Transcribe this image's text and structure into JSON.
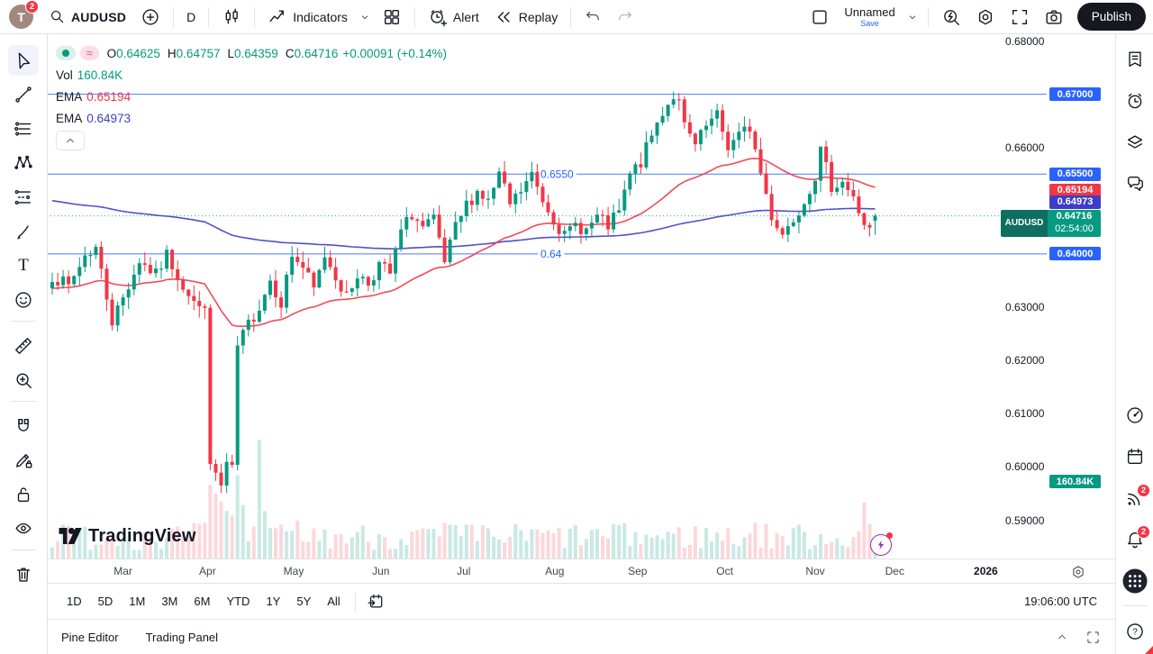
{
  "topbar": {
    "avatar_letter": "T",
    "avatar_badge": "2",
    "symbol": "AUDUSD",
    "interval": "D",
    "indicators_label": "Indicators",
    "alert_label": "Alert",
    "replay_label": "Replay",
    "layout_name": "Unnamed",
    "save_label": "Save",
    "publish_label": "Publish"
  },
  "left_toolbar": {
    "active": "cursor",
    "groups": [
      [
        "cursor",
        "trend-line",
        "horizontal-lines",
        "xabcd-pattern",
        "fib-retracement",
        "brush",
        "text",
        "emoji"
      ],
      [
        "ruler",
        "zoom-in"
      ],
      [
        "magnet",
        "drawing-edit",
        "lock-all",
        "hide-all"
      ],
      [
        "remove-all"
      ]
    ]
  },
  "right_sidebar": {
    "top": [
      {
        "name": "watchlist"
      },
      {
        "name": "alerts-clock"
      },
      {
        "name": "object-tree"
      },
      {
        "name": "chat"
      }
    ],
    "bottom": [
      {
        "name": "ideas-stream"
      },
      {
        "name": "calendar"
      },
      {
        "name": "streams",
        "badge": "2"
      },
      {
        "name": "notifications",
        "badge": "2"
      },
      {
        "name": "apps-grid"
      }
    ],
    "help_label": "?"
  },
  "legend": {
    "ohlc": [
      [
        "O",
        "0.64625"
      ],
      [
        "H",
        "0.64757"
      ],
      [
        "L",
        "0.64359"
      ],
      [
        "C",
        "0.64716"
      ]
    ],
    "change": "+0.00091 (+0.14%)",
    "vol_label": "Vol",
    "vol_value": "160.84K",
    "ema1_label": "EMA",
    "ema1_value": "0.65194",
    "ema2_label": "EMA",
    "ema2_value": "0.64973"
  },
  "price_scale": {
    "ticks": [
      {
        "label": "0.68000",
        "price": 0.68,
        "type": "plain"
      },
      {
        "label": "0.67000",
        "price": 0.67,
        "type": "level"
      },
      {
        "label": "0.66000",
        "price": 0.66,
        "type": "plain"
      },
      {
        "label": "0.65500",
        "price": 0.655,
        "type": "level"
      },
      {
        "label": "0.65194",
        "price": 0.65194,
        "type": "ema1"
      },
      {
        "label": "0.64973",
        "price": 0.64973,
        "type": "ema2"
      },
      {
        "label": "0.64000",
        "price": 0.64,
        "type": "level"
      },
      {
        "label": "0.63000",
        "price": 0.63,
        "type": "plain"
      },
      {
        "label": "0.62000",
        "price": 0.62,
        "type": "plain"
      },
      {
        "label": "0.61000",
        "price": 0.61,
        "type": "plain"
      },
      {
        "label": "0.60000",
        "price": 0.6,
        "type": "plain"
      },
      {
        "label": "0.59000",
        "price": 0.59,
        "type": "plain"
      }
    ],
    "volume_badge": "160.84K",
    "volume_badge_price": 0.5972
  },
  "time_axis": {
    "labels": [
      [
        "Mar",
        13
      ],
      [
        "Apr",
        28.5
      ],
      [
        "May",
        44.3
      ],
      [
        "Jun",
        60.3
      ],
      [
        "Jul",
        75.5
      ],
      [
        "Aug",
        92.2
      ],
      [
        "Sep",
        107.4
      ],
      [
        "Oct",
        123.4
      ],
      [
        "Nov",
        140
      ],
      [
        "Dec",
        154.6
      ],
      [
        "2026",
        171.3
      ]
    ]
  },
  "range_toolbar": {
    "ranges": [
      "1D",
      "5D",
      "1M",
      "3M",
      "6M",
      "YTD",
      "1Y",
      "5Y",
      "All"
    ],
    "clock": "19:06:00 UTC"
  },
  "bottom_bar": {
    "items": [
      "Pine Editor",
      "Trading Panel"
    ]
  },
  "watermark": "TradingView",
  "chart_data": {
    "type": "candlestick",
    "symbol": "AUDUSD",
    "timeframe": "D",
    "title": "AUDUSD daily candlestick chart with volume and two EMAs",
    "current": {
      "open": 0.64625,
      "high": 0.64757,
      "low": 0.64359,
      "close": 0.64716,
      "change": "+0.00091",
      "change_pct": "+0.14%",
      "volume": "160.84K",
      "countdown": "02:54:00"
    },
    "emas": [
      {
        "label": "EMA",
        "value": 0.65194,
        "color": "#f23645",
        "alpha": 0.049,
        "init": 0.6335
      },
      {
        "label": "EMA",
        "value": 0.64973,
        "color": "#3d3dc8",
        "alpha": 0.011,
        "init": 0.6502
      }
    ],
    "levels": [
      {
        "price": 0.67,
        "label": ""
      },
      {
        "price": 0.655,
        "label": "0.6550"
      },
      {
        "price": 0.64,
        "label": "0.64"
      }
    ],
    "price_line": {
      "price": 0.64716,
      "color": "#089981"
    },
    "y_axis": {
      "min": 0.585,
      "max": 0.683,
      "tick_step": 0.01
    },
    "x_axis": {
      "start": "Feb",
      "end": "2026",
      "visible_months": [
        "Mar",
        "Apr",
        "May",
        "Jun",
        "Jul",
        "Aug",
        "Sep",
        "Oct",
        "Nov",
        "Dec"
      ]
    },
    "candles": {
      "count": 152,
      "seed": 7,
      "noise": 0.0013,
      "anchors": [
        [
          0,
          0.636
        ],
        [
          3,
          0.6338
        ],
        [
          6,
          0.6398
        ],
        [
          8,
          0.6412
        ],
        [
          11,
          0.6275
        ],
        [
          13,
          0.6318
        ],
        [
          16,
          0.6388
        ],
        [
          19,
          0.636
        ],
        [
          21,
          0.6398
        ],
        [
          24,
          0.6342
        ],
        [
          27,
          0.6295
        ],
        [
          28,
          0.631
        ],
        [
          29,
          0.5995
        ],
        [
          30,
          0.5988
        ],
        [
          31,
          0.5962
        ],
        [
          32,
          0.6005
        ],
        [
          33,
          0.5992
        ],
        [
          34,
          0.6225
        ],
        [
          36,
          0.6268
        ],
        [
          38,
          0.6302
        ],
        [
          40,
          0.6352
        ],
        [
          42,
          0.631
        ],
        [
          44,
          0.6398
        ],
        [
          46,
          0.6375
        ],
        [
          48,
          0.6332
        ],
        [
          50,
          0.6398
        ],
        [
          52,
          0.636
        ],
        [
          54,
          0.6318
        ],
        [
          56,
          0.6362
        ],
        [
          58,
          0.6345
        ],
        [
          60,
          0.638
        ],
        [
          62,
          0.6362
        ],
        [
          64,
          0.6442
        ],
        [
          66,
          0.6475
        ],
        [
          68,
          0.6448
        ],
        [
          70,
          0.6462
        ],
        [
          72,
          0.6382
        ],
        [
          74,
          0.6448
        ],
        [
          76,
          0.6492
        ],
        [
          78,
          0.6518
        ],
        [
          80,
          0.6498
        ],
        [
          82,
          0.6548
        ],
        [
          84,
          0.6492
        ],
        [
          86,
          0.6518
        ],
        [
          88,
          0.6548
        ],
        [
          90,
          0.6502
        ],
        [
          92,
          0.6468
        ],
        [
          94,
          0.6432
        ],
        [
          96,
          0.6455
        ],
        [
          98,
          0.6445
        ],
        [
          100,
          0.6468
        ],
        [
          102,
          0.6452
        ],
        [
          104,
          0.6478
        ],
        [
          106,
          0.6548
        ],
        [
          108,
          0.6572
        ],
        [
          110,
          0.6622
        ],
        [
          112,
          0.6668
        ],
        [
          114,
          0.6698
        ],
        [
          115,
          0.6682
        ],
        [
          116,
          0.6638
        ],
        [
          118,
          0.6602
        ],
        [
          120,
          0.6638
        ],
        [
          122,
          0.6658
        ],
        [
          124,
          0.6602
        ],
        [
          126,
          0.6622
        ],
        [
          128,
          0.6638
        ],
        [
          130,
          0.6552
        ],
        [
          132,
          0.6472
        ],
        [
          134,
          0.6438
        ],
        [
          136,
          0.6468
        ],
        [
          138,
          0.6502
        ],
        [
          140,
          0.6548
        ],
        [
          141,
          0.6592
        ],
        [
          143,
          0.6528
        ],
        [
          145,
          0.6538
        ],
        [
          147,
          0.6502
        ],
        [
          149,
          0.6458
        ],
        [
          150,
          0.6442
        ],
        [
          151,
          0.64716
        ]
      ]
    },
    "volume": {
      "base": 0.07,
      "spread": 0.23,
      "spikes": {
        "28": 0.3,
        "29": 0.62,
        "30": 0.55,
        "31": 0.48,
        "32": 0.4,
        "33": 0.36,
        "34": 0.7,
        "35": 0.45,
        "38": 1.0,
        "39": 0.4,
        "45": 0.32,
        "72": 0.3,
        "104": 0.28,
        "129": 0.3,
        "149": 0.47,
        "151": 0.13
      }
    },
    "event_marker": {
      "type": "lightning",
      "color": "#9c27b0"
    }
  },
  "colors": {
    "up": "#089981",
    "down": "#f23645",
    "level": "#2962ff",
    "ema_fast": "#f23645",
    "ema_slow": "#3d3dc8",
    "accent": "#2962ff",
    "badge_red": "#f23645",
    "symbol_tag_bg": "#0e6e5f",
    "text": "#131722",
    "border": "#e0e3eb"
  }
}
